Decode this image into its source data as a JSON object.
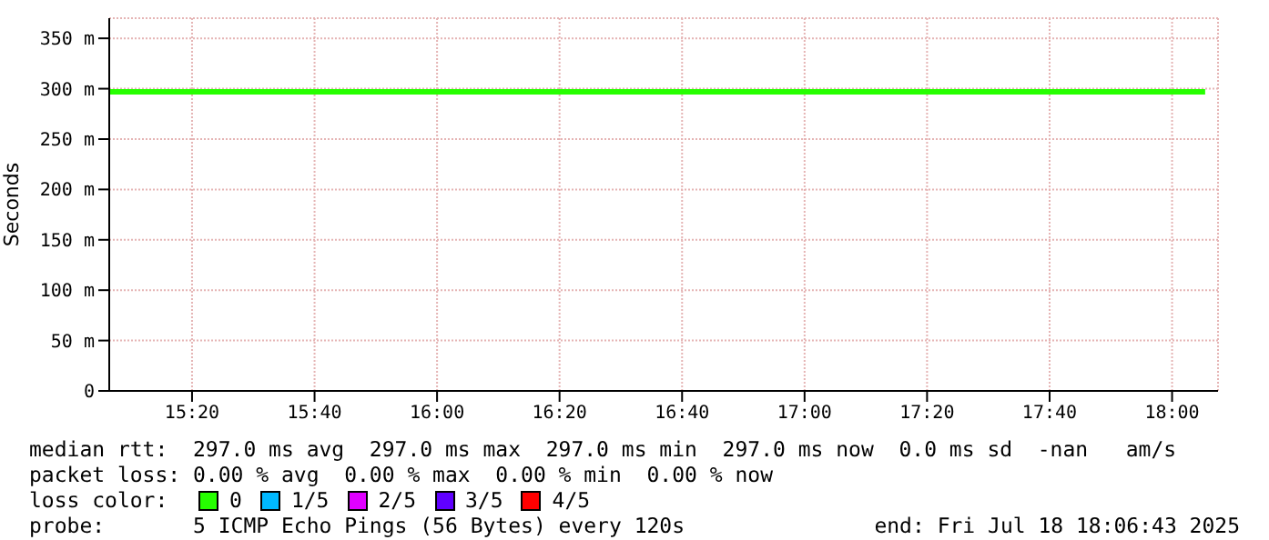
{
  "chart_data": {
    "type": "line",
    "ylabel": "Seconds",
    "x": [
      15.108,
      18.09
    ],
    "xlim": [
      15.108,
      18.125
    ],
    "xticks": [
      {
        "value": 15.3333,
        "label": "15:20"
      },
      {
        "value": 15.6667,
        "label": "15:40"
      },
      {
        "value": 16,
        "label": "16:00"
      },
      {
        "value": 16.3333,
        "label": "16:20"
      },
      {
        "value": 16.6667,
        "label": "16:40"
      },
      {
        "value": 17,
        "label": "17:00"
      },
      {
        "value": 17.3333,
        "label": "17:20"
      },
      {
        "value": 17.6667,
        "label": "17:40"
      },
      {
        "value": 18,
        "label": "18:00"
      }
    ],
    "ylim": [
      0,
      370
    ],
    "yticks": [
      0,
      {
        "value": 50,
        "label": "50 m"
      },
      {
        "value": 100,
        "label": "100 m"
      },
      {
        "value": 150,
        "label": "150 m"
      },
      {
        "value": 200,
        "label": "200 m"
      },
      {
        "value": 250,
        "label": "250 m"
      },
      {
        "value": 300,
        "label": "300 m"
      },
      {
        "value": 350,
        "label": "350 m"
      }
    ],
    "grid": true,
    "legend": "bottom",
    "legend_title": "loss color:",
    "series": [
      {
        "name": "0",
        "color": "#26ff00",
        "values": [
          297,
          297
        ]
      },
      {
        "name": "1/5",
        "color": "#00b8ff",
        "values": [
          null,
          null
        ]
      },
      {
        "name": "2/5",
        "color": "#e000ff",
        "values": [
          null,
          null
        ]
      },
      {
        "name": "3/5",
        "color": "#6000ff",
        "values": [
          null,
          null
        ]
      },
      {
        "name": "4/5",
        "color": "#ff0000",
        "values": [
          null,
          null
        ]
      }
    ],
    "annotations": [
      "median rtt:  297.0 ms avg  297.0 ms max  297.0 ms min  297.0 ms now  0.0 ms sd  -nan   am/s",
      "packet loss: 0.00 % avg  0.00 % max  0.00 % min  0.00 % now",
      "probe:       5 ICMP Echo Pings (56 Bytes) every 120s",
      "end: Fri Jul 18 18:06:43 2025"
    ]
  }
}
